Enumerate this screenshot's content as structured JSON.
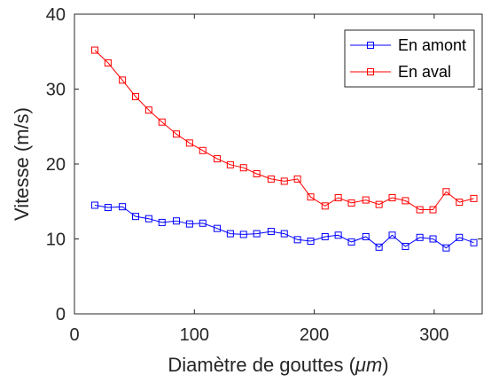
{
  "chart_data": {
    "type": "line",
    "xlabel": "Diamètre de gouttes (",
    "xlabel_unit": "μm",
    "xlabel_close": ")",
    "ylabel": "Vitesse (m/s)",
    "xlim": [
      0,
      340
    ],
    "ylim": [
      0,
      40
    ],
    "xticks": [
      0,
      100,
      200,
      300
    ],
    "yticks": [
      0,
      10,
      20,
      30,
      40
    ],
    "grid": false,
    "legend_position": "top-right",
    "marker": "square-open",
    "x": [
      17,
      28,
      40,
      51,
      62,
      73,
      85,
      96,
      107,
      119,
      130,
      141,
      152,
      164,
      175,
      186,
      197,
      209,
      220,
      231,
      243,
      254,
      265,
      276,
      288,
      299,
      310,
      321,
      333
    ],
    "series": [
      {
        "name": "En amont",
        "color": "#0000ff",
        "values": [
          14.5,
          14.2,
          14.3,
          13.0,
          12.7,
          12.2,
          12.4,
          12.0,
          12.1,
          11.4,
          10.7,
          10.6,
          10.7,
          11.0,
          10.7,
          9.9,
          9.7,
          10.3,
          10.5,
          9.6,
          10.3,
          8.9,
          10.5,
          9.0,
          10.2,
          10.0,
          8.8,
          10.2,
          9.5
        ]
      },
      {
        "name": "En aval",
        "color": "#ff0000",
        "values": [
          35.2,
          33.5,
          31.2,
          29.0,
          27.2,
          25.6,
          24.0,
          22.8,
          21.8,
          20.7,
          19.9,
          19.5,
          18.7,
          18.0,
          17.7,
          18.0,
          15.6,
          14.4,
          15.5,
          14.8,
          15.2,
          14.6,
          15.5,
          15.1,
          13.9,
          13.9,
          16.3,
          14.9,
          15.4
        ]
      }
    ]
  }
}
